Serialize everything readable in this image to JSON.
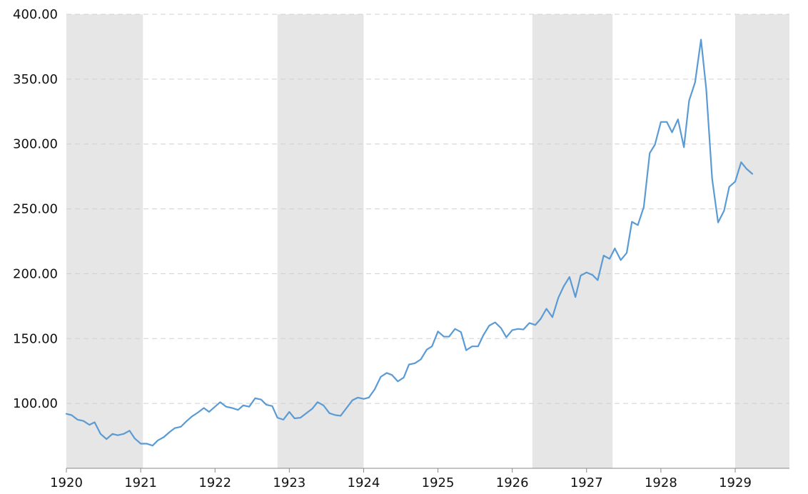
{
  "chart_data": {
    "type": "line",
    "title": "",
    "xlabel": "",
    "ylabel": "",
    "colors": {
      "line": "#5b9bd5",
      "recession_band": "#e6e6e6",
      "grid": "#d0d0d0",
      "axis": "#8a8a8a",
      "text": "#111111"
    },
    "grid": true,
    "grid_style": "dashed horizontal",
    "xlim": [
      1919.99,
      1929.87
    ],
    "ylim": [
      50,
      400
    ],
    "y_ticks": [
      {
        "value": 100,
        "label": "100.00"
      },
      {
        "value": 150,
        "label": "150.00"
      },
      {
        "value": 200,
        "label": "200.00"
      },
      {
        "value": 250,
        "label": "250.00"
      },
      {
        "value": 300,
        "label": "300.00"
      },
      {
        "value": 350,
        "label": "350.00"
      },
      {
        "value": 400,
        "label": "400.00"
      }
    ],
    "x_ticks": [
      {
        "value": 1920,
        "label": "1920"
      },
      {
        "value": 1921,
        "label": "1921"
      },
      {
        "value": 1922,
        "label": "1922"
      },
      {
        "value": 1923,
        "label": "1923"
      },
      {
        "value": 1924,
        "label": "1924"
      },
      {
        "value": 1925,
        "label": "1925"
      },
      {
        "value": 1926,
        "label": "1926"
      },
      {
        "value": 1927,
        "label": "1927"
      },
      {
        "value": 1928,
        "label": "1928"
      },
      {
        "value": 1929,
        "label": "1929"
      }
    ],
    "shaded_periods": [
      {
        "start": 1920.0,
        "end": 1921.03
      },
      {
        "start": 1922.84,
        "end": 1924.0
      },
      {
        "start": 1926.27,
        "end": 1927.35
      },
      {
        "start": 1929.0,
        "end": 1929.87
      }
    ],
    "series": [
      {
        "values": [
          [
            1920.0,
            92
          ],
          [
            1920.07,
            91
          ],
          [
            1920.15,
            87.5
          ],
          [
            1920.23,
            86.5
          ],
          [
            1920.31,
            83.5
          ],
          [
            1920.38,
            85.5
          ],
          [
            1920.46,
            76.5
          ],
          [
            1920.54,
            72.5
          ],
          [
            1920.62,
            76.5
          ],
          [
            1920.69,
            75.5
          ],
          [
            1920.77,
            76.5
          ],
          [
            1920.85,
            79
          ],
          [
            1920.92,
            73
          ],
          [
            1921.0,
            69
          ],
          [
            1921.08,
            69
          ],
          [
            1921.16,
            67.5
          ],
          [
            1921.23,
            71.5
          ],
          [
            1921.31,
            74
          ],
          [
            1921.39,
            78
          ],
          [
            1921.46,
            81
          ],
          [
            1921.54,
            82
          ],
          [
            1921.62,
            86.5
          ],
          [
            1921.69,
            90
          ],
          [
            1921.77,
            93
          ],
          [
            1921.85,
            96.5
          ],
          [
            1921.92,
            93.5
          ],
          [
            1922.0,
            97.5
          ],
          [
            1922.07,
            101
          ],
          [
            1922.15,
            97.5
          ],
          [
            1922.23,
            96.5
          ],
          [
            1922.31,
            95
          ],
          [
            1922.38,
            98.5
          ],
          [
            1922.46,
            97.5
          ],
          [
            1922.54,
            104
          ],
          [
            1922.62,
            103
          ],
          [
            1922.69,
            99
          ],
          [
            1922.77,
            98
          ],
          [
            1922.84,
            89
          ],
          [
            1922.92,
            87.5
          ],
          [
            1923.0,
            93.5
          ],
          [
            1923.07,
            88.5
          ],
          [
            1923.15,
            89
          ],
          [
            1923.23,
            92.5
          ],
          [
            1923.31,
            96
          ],
          [
            1923.38,
            101
          ],
          [
            1923.46,
            98.5
          ],
          [
            1923.54,
            92.5
          ],
          [
            1923.62,
            91
          ],
          [
            1923.69,
            90.5
          ],
          [
            1923.77,
            96.5
          ],
          [
            1923.85,
            102.5
          ],
          [
            1923.92,
            104.5
          ],
          [
            1924.0,
            103.5
          ],
          [
            1924.07,
            104.5
          ],
          [
            1924.15,
            111
          ],
          [
            1924.23,
            120.5
          ],
          [
            1924.31,
            123.5
          ],
          [
            1924.38,
            122
          ],
          [
            1924.46,
            117
          ],
          [
            1924.54,
            120
          ],
          [
            1924.61,
            130
          ],
          [
            1924.69,
            131
          ],
          [
            1924.77,
            134
          ],
          [
            1924.85,
            141.5
          ],
          [
            1924.92,
            144
          ],
          [
            1925.0,
            155.5
          ],
          [
            1925.08,
            151.5
          ],
          [
            1925.15,
            151.5
          ],
          [
            1925.23,
            157.5
          ],
          [
            1925.31,
            155
          ],
          [
            1925.38,
            141
          ],
          [
            1925.46,
            144
          ],
          [
            1925.54,
            144
          ],
          [
            1925.61,
            152.5
          ],
          [
            1925.69,
            160
          ],
          [
            1925.77,
            162.5
          ],
          [
            1925.85,
            158
          ],
          [
            1925.92,
            151
          ],
          [
            1926.0,
            156.5
          ],
          [
            1926.08,
            157.5
          ],
          [
            1926.15,
            157
          ],
          [
            1926.23,
            162
          ],
          [
            1926.31,
            160.5
          ],
          [
            1926.38,
            165
          ],
          [
            1926.46,
            173
          ],
          [
            1926.54,
            166.5
          ],
          [
            1926.62,
            181.5
          ],
          [
            1926.69,
            190
          ],
          [
            1926.77,
            197.5
          ],
          [
            1926.85,
            182
          ],
          [
            1926.92,
            198.5
          ],
          [
            1927.0,
            201
          ],
          [
            1927.08,
            199
          ],
          [
            1927.15,
            195
          ],
          [
            1927.23,
            214
          ],
          [
            1927.31,
            211.5
          ],
          [
            1927.38,
            219.5
          ],
          [
            1927.46,
            210.5
          ],
          [
            1927.54,
            216
          ],
          [
            1927.61,
            240
          ],
          [
            1927.69,
            237.5
          ],
          [
            1927.77,
            251.5
          ],
          [
            1927.85,
            293
          ],
          [
            1927.92,
            299.5
          ],
          [
            1928.0,
            317
          ],
          [
            1928.08,
            317
          ],
          [
            1928.15,
            309
          ],
          [
            1928.23,
            319
          ],
          [
            1928.31,
            297.5
          ],
          [
            1928.38,
            333.5
          ],
          [
            1928.46,
            347.5
          ],
          [
            1928.54,
            380.5
          ],
          [
            1928.61,
            342.5
          ],
          [
            1928.69,
            273
          ],
          [
            1928.77,
            239.5
          ],
          [
            1928.85,
            248.5
          ],
          [
            1928.92,
            267
          ],
          [
            1929.0,
            271
          ],
          [
            1929.08,
            286
          ],
          [
            1929.15,
            281
          ],
          [
            1929.23,
            277
          ]
        ]
      }
    ]
  }
}
